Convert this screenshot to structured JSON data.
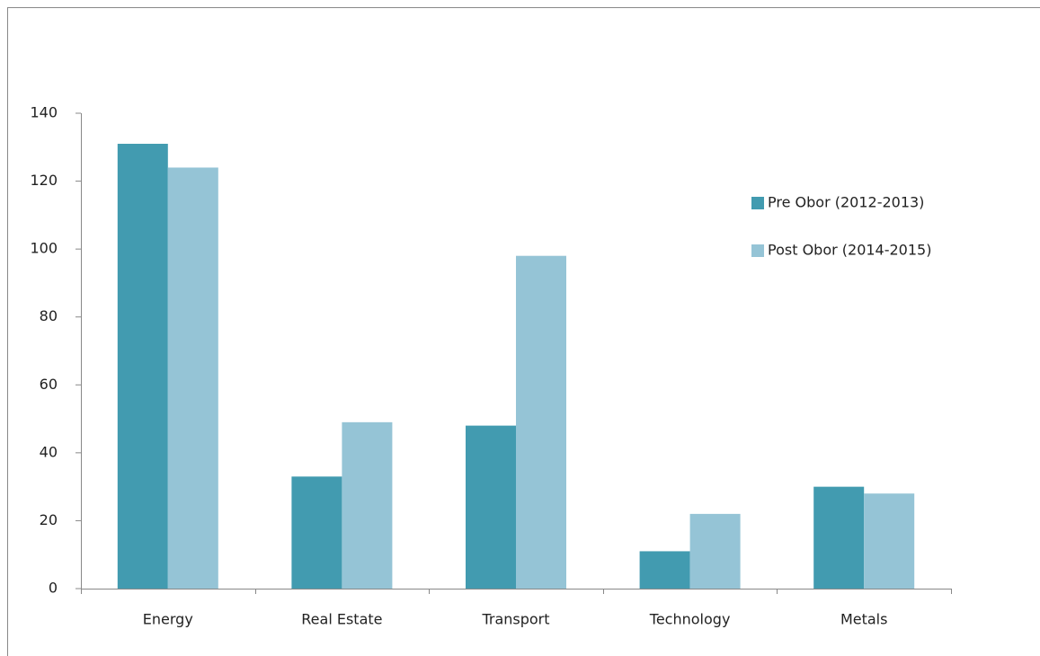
{
  "chart_data": {
    "type": "bar",
    "categories": [
      "Energy",
      "Real Estate",
      "Transport",
      "Technology",
      "Metals"
    ],
    "series": [
      {
        "name": "Pre Obor (2012-2013)",
        "color": "#429bb0",
        "values": [
          131,
          33,
          48,
          11,
          30
        ]
      },
      {
        "name": "Post Obor (2014-2015)",
        "color": "#95c4d6",
        "values": [
          124,
          49,
          98,
          22,
          28
        ]
      }
    ],
    "ylim": [
      0,
      140
    ],
    "yticks": [
      0,
      20,
      40,
      60,
      80,
      100,
      120,
      140
    ],
    "grid": false,
    "legend": "right"
  }
}
